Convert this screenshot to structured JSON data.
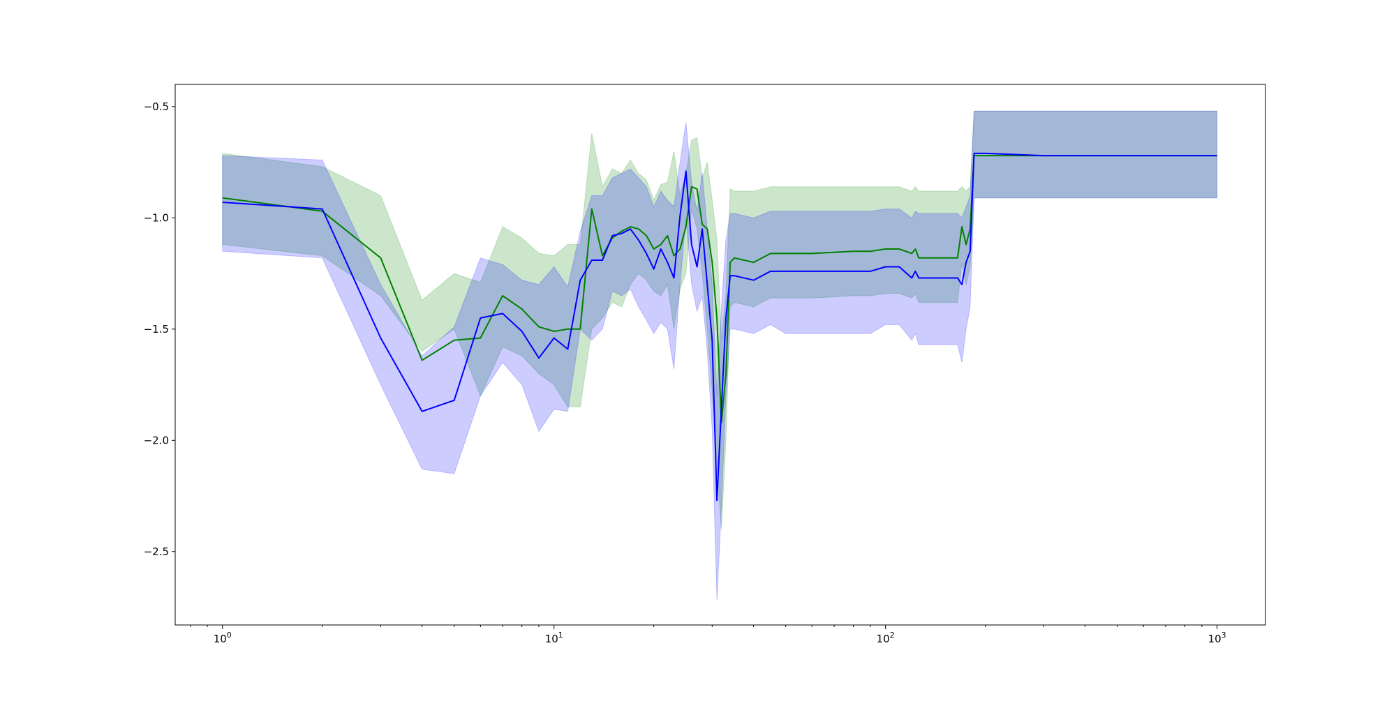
{
  "chart_data": {
    "type": "line",
    "title": "",
    "xlabel": "",
    "ylabel": "",
    "xscale": "log",
    "xlim": [
      0.72,
      1400
    ],
    "ylim": [
      -2.83,
      -0.4
    ],
    "grid": false,
    "x_ticks": [
      {
        "value": 1,
        "base": "10",
        "exp": "0"
      },
      {
        "value": 10,
        "base": "10",
        "exp": "1"
      },
      {
        "value": 100,
        "base": "10",
        "exp": "2"
      },
      {
        "value": 1000,
        "base": "10",
        "exp": "3"
      }
    ],
    "y_ticks": [
      {
        "value": -0.5,
        "label": "−0.5"
      },
      {
        "value": -1.0,
        "label": "−1.0"
      },
      {
        "value": -1.5,
        "label": "−1.5"
      },
      {
        "value": -2.0,
        "label": "−2.0"
      },
      {
        "value": -2.5,
        "label": "−2.5"
      }
    ],
    "series": [
      {
        "color": "#008000",
        "band_color": "#008000",
        "band_opacity": 0.2,
        "x": [
          1,
          2,
          3,
          4,
          5,
          6,
          7,
          8,
          9,
          10,
          11,
          12,
          13,
          14,
          15,
          16,
          17,
          18,
          19,
          20,
          21,
          22,
          23,
          24,
          25,
          26,
          27,
          28,
          29,
          30,
          31,
          32,
          33,
          34,
          35,
          40,
          45,
          50,
          60,
          80,
          90,
          100,
          110,
          120,
          123,
          126,
          130,
          150,
          165,
          170,
          175,
          180,
          185,
          200,
          300,
          500,
          1000
        ],
        "y": [
          -0.91,
          -0.97,
          -1.18,
          -1.64,
          -1.55,
          -1.54,
          -1.35,
          -1.41,
          -1.49,
          -1.51,
          -1.5,
          -1.5,
          -0.96,
          -1.17,
          -1.09,
          -1.06,
          -1.04,
          -1.05,
          -1.08,
          -1.14,
          -1.12,
          -1.08,
          -1.17,
          -1.14,
          -1.04,
          -0.86,
          -0.87,
          -1.03,
          -1.05,
          -1.2,
          -1.45,
          -1.92,
          -1.7,
          -1.2,
          -1.18,
          -1.2,
          -1.16,
          -1.16,
          -1.16,
          -1.15,
          -1.15,
          -1.14,
          -1.14,
          -1.16,
          -1.14,
          -1.18,
          -1.18,
          -1.18,
          -1.18,
          -1.04,
          -1.12,
          -1.05,
          -0.72,
          -0.72,
          -0.72,
          -0.72,
          -0.72
        ],
        "lower": [
          -1.12,
          -1.17,
          -1.35,
          -1.6,
          -1.5,
          -1.8,
          -1.58,
          -1.62,
          -1.7,
          -1.75,
          -1.85,
          -1.85,
          -1.5,
          -1.45,
          -1.38,
          -1.4,
          -1.3,
          -1.25,
          -1.28,
          -1.33,
          -1.35,
          -1.3,
          -1.5,
          -1.32,
          -1.25,
          -0.96,
          -1.05,
          -1.25,
          -1.5,
          -1.78,
          -2.1,
          -2.4,
          -2.0,
          -1.4,
          -1.38,
          -1.4,
          -1.36,
          -1.36,
          -1.36,
          -1.35,
          -1.35,
          -1.34,
          -1.34,
          -1.36,
          -1.34,
          -1.38,
          -1.38,
          -1.38,
          -1.38,
          -1.2,
          -1.3,
          -1.22,
          -0.91,
          -0.91,
          -0.91,
          -0.91,
          -0.91
        ],
        "upper": [
          -0.71,
          -0.77,
          -0.9,
          -1.37,
          -1.25,
          -1.29,
          -1.04,
          -1.09,
          -1.16,
          -1.17,
          -1.12,
          -1.12,
          -0.62,
          -0.86,
          -0.78,
          -0.8,
          -0.74,
          -0.8,
          -0.83,
          -0.92,
          -0.85,
          -0.84,
          -0.7,
          -0.9,
          -0.8,
          -0.65,
          -0.64,
          -0.82,
          -0.75,
          -0.92,
          -1.1,
          -1.55,
          -1.35,
          -0.87,
          -0.88,
          -0.88,
          -0.86,
          -0.86,
          -0.86,
          -0.86,
          -0.86,
          -0.86,
          -0.86,
          -0.88,
          -0.86,
          -0.88,
          -0.88,
          -0.88,
          -0.88,
          -0.86,
          -0.88,
          -0.86,
          -0.52,
          -0.52,
          -0.52,
          -0.52,
          -0.52
        ]
      },
      {
        "color": "#0000ff",
        "band_color": "#0000ff",
        "band_opacity": 0.2,
        "x": [
          1,
          2,
          3,
          4,
          5,
          6,
          7,
          8,
          9,
          10,
          11,
          12,
          13,
          14,
          15,
          16,
          17,
          18,
          19,
          20,
          21,
          22,
          23,
          24,
          25,
          26,
          27,
          28,
          29,
          30,
          31,
          32,
          33,
          34,
          35,
          40,
          45,
          50,
          60,
          80,
          90,
          100,
          110,
          120,
          123,
          126,
          130,
          150,
          165,
          170,
          175,
          180,
          185,
          200,
          300,
          500,
          1000
        ],
        "y": [
          -0.93,
          -0.96,
          -1.54,
          -1.87,
          -1.82,
          -1.45,
          -1.43,
          -1.51,
          -1.63,
          -1.54,
          -1.59,
          -1.28,
          -1.19,
          -1.19,
          -1.08,
          -1.07,
          -1.05,
          -1.1,
          -1.16,
          -1.23,
          -1.14,
          -1.2,
          -1.27,
          -0.99,
          -0.79,
          -1.12,
          -1.22,
          -1.05,
          -1.3,
          -1.55,
          -2.27,
          -1.85,
          -1.45,
          -1.26,
          -1.26,
          -1.28,
          -1.24,
          -1.24,
          -1.24,
          -1.24,
          -1.24,
          -1.22,
          -1.22,
          -1.27,
          -1.24,
          -1.27,
          -1.27,
          -1.27,
          -1.27,
          -1.3,
          -1.2,
          -1.15,
          -0.71,
          -0.71,
          -0.72,
          -0.72,
          -0.72
        ],
        "lower": [
          -1.15,
          -1.18,
          -1.75,
          -2.13,
          -2.15,
          -1.8,
          -1.65,
          -1.75,
          -1.96,
          -1.86,
          -1.87,
          -1.5,
          -1.55,
          -1.5,
          -1.33,
          -1.35,
          -1.32,
          -1.4,
          -1.46,
          -1.52,
          -1.47,
          -1.5,
          -1.68,
          -1.3,
          -1.0,
          -1.3,
          -1.42,
          -1.35,
          -1.6,
          -1.95,
          -2.72,
          -2.3,
          -1.8,
          -1.5,
          -1.5,
          -1.52,
          -1.48,
          -1.52,
          -1.52,
          -1.52,
          -1.52,
          -1.48,
          -1.48,
          -1.55,
          -1.52,
          -1.57,
          -1.57,
          -1.57,
          -1.57,
          -1.65,
          -1.5,
          -1.4,
          -0.91,
          -0.91,
          -0.91,
          -0.91,
          -0.91
        ],
        "upper": [
          -0.72,
          -0.74,
          -1.3,
          -1.62,
          -1.49,
          -1.18,
          -1.21,
          -1.28,
          -1.3,
          -1.22,
          -1.31,
          -1.06,
          -0.9,
          -0.9,
          -0.82,
          -0.8,
          -0.78,
          -0.82,
          -0.86,
          -0.95,
          -0.88,
          -0.92,
          -0.95,
          -0.75,
          -0.57,
          -0.84,
          -0.97,
          -0.8,
          -1.05,
          -1.3,
          -1.8,
          -1.4,
          -1.1,
          -0.98,
          -0.98,
          -1.0,
          -0.97,
          -0.97,
          -0.97,
          -0.97,
          -0.97,
          -0.96,
          -0.96,
          -1.0,
          -0.97,
          -0.98,
          -0.98,
          -0.98,
          -0.98,
          -1.0,
          -0.95,
          -0.9,
          -0.52,
          -0.52,
          -0.52,
          -0.52,
          -0.52
        ]
      }
    ]
  }
}
